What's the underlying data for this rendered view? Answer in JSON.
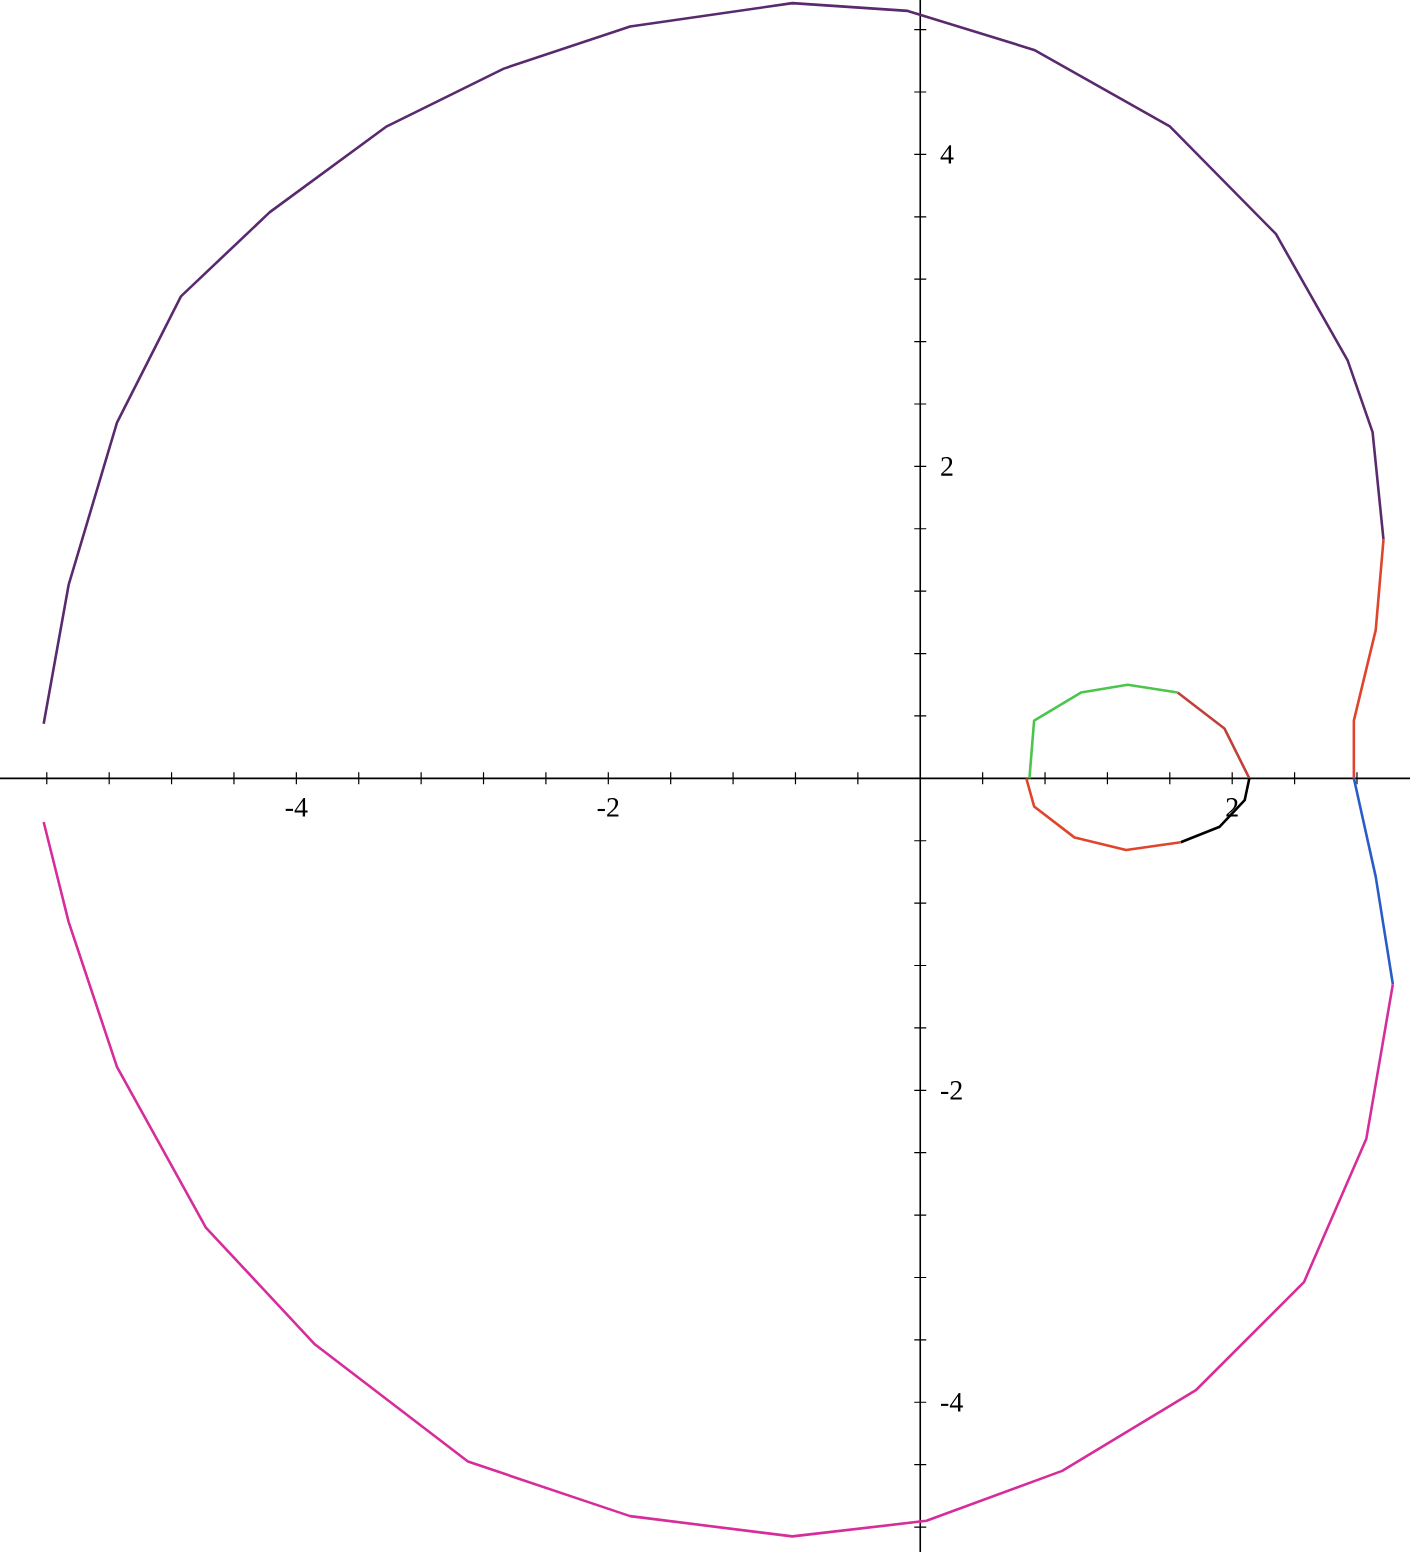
{
  "chart_data": {
    "type": "line",
    "xlim": [
      -5.9,
      3.14
    ],
    "ylim": [
      -4.96,
      4.99
    ],
    "marker": "none",
    "line_style": "solid",
    "grid": false,
    "legend": false,
    "xticks": [
      {
        "value": -5.6,
        "label": null
      },
      {
        "value": -5.2,
        "label": null
      },
      {
        "value": -4.8,
        "label": null
      },
      {
        "value": -4.4,
        "label": null
      },
      -4,
      {
        "value": -3.6,
        "label": null
      },
      {
        "value": -3.2,
        "label": null
      },
      {
        "value": -2.8,
        "label": null
      },
      {
        "value": -2.4,
        "label": null
      },
      -2,
      {
        "value": -1.6,
        "label": null
      },
      {
        "value": -1.2,
        "label": null
      },
      {
        "value": -0.8,
        "label": null
      },
      {
        "value": -0.4,
        "label": null
      },
      {
        "value": 0.4,
        "label": null
      },
      {
        "value": 0.8,
        "label": null
      },
      {
        "value": 1.2,
        "label": null
      },
      {
        "value": 1.6,
        "label": null
      },
      2,
      {
        "value": 2.4,
        "label": null
      },
      {
        "value": 2.8,
        "label": null
      }
    ],
    "yticks": [
      {
        "value": -4.8,
        "label": null
      },
      {
        "value": -4.4,
        "label": null
      },
      -4,
      {
        "value": -3.6,
        "label": null
      },
      {
        "value": -3.2,
        "label": null
      },
      {
        "value": -2.8,
        "label": null
      },
      {
        "value": -2.4,
        "label": null
      },
      -2,
      {
        "value": -1.6,
        "label": null
      },
      {
        "value": -1.2,
        "label": null
      },
      {
        "value": -0.8,
        "label": null
      },
      {
        "value": -0.4,
        "label": null
      },
      {
        "value": 0.4,
        "label": null
      },
      {
        "value": 0.8,
        "label": null
      },
      {
        "value": 1.2,
        "label": null
      },
      {
        "value": 1.6,
        "label": null
      },
      2,
      {
        "value": 2.4,
        "label": null
      },
      {
        "value": 2.8,
        "label": null
      },
      {
        "value": 3.2,
        "label": null
      },
      {
        "value": 3.6,
        "label": null
      },
      4,
      {
        "value": 4.4,
        "label": null
      },
      {
        "value": 4.8,
        "label": null
      }
    ],
    "series": [
      {
        "color": "#5a2a6e",
        "x": [
          -5.62,
          -5.46,
          -5.15,
          -4.74,
          -4.17,
          -3.42,
          -2.67,
          -1.86,
          -0.82,
          -0.08,
          0.73,
          1.6,
          2.28,
          2.74,
          2.9,
          2.97
        ],
        "values": [
          0.35,
          1.24,
          2.28,
          3.09,
          3.63,
          4.18,
          4.55,
          4.82,
          4.97,
          4.92,
          4.67,
          4.18,
          3.49,
          2.68,
          2.22,
          1.53
        ]
      },
      {
        "color": "#e0452c",
        "x": [
          2.97,
          2.92,
          2.78,
          2.78
        ],
        "values": [
          1.53,
          0.95,
          0.37,
          0
        ]
      },
      {
        "color": "#2a5cc8",
        "x": [
          2.78,
          2.92,
          3.03
        ],
        "values": [
          0,
          -0.63,
          -1.32
        ]
      },
      {
        "color": "#d62d9a",
        "x": [
          3.03,
          2.86,
          2.46,
          1.77,
          0.91,
          0.04,
          -0.82,
          -1.86,
          -2.9,
          -3.88,
          -4.58,
          -5.15,
          -5.46,
          -5.62
        ],
        "values": [
          -1.32,
          -2.31,
          -3.23,
          -3.92,
          -4.44,
          -4.76,
          -4.86,
          -4.73,
          -4.38,
          -3.63,
          -2.88,
          -1.85,
          -0.92,
          -0.28
        ]
      },
      {
        "color": "#4cc54c",
        "x": [
          0.7,
          0.73,
          1.03,
          1.33,
          1.65
        ],
        "values": [
          0,
          0.37,
          0.55,
          0.6,
          0.55
        ]
      },
      {
        "color": "#c0403a",
        "x": [
          1.65,
          1.95,
          2.11
        ],
        "values": [
          0.55,
          0.32,
          0
        ]
      },
      {
        "color": "#000000",
        "x": [
          2.11,
          2.08,
          1.92,
          1.67
        ],
        "values": [
          0,
          -0.14,
          -0.31,
          -0.41
        ]
      },
      {
        "color": "#e0452c",
        "x": [
          1.67,
          1.32,
          0.99,
          0.73,
          0.68
        ],
        "values": [
          -0.41,
          -0.46,
          -0.38,
          -0.18,
          0
        ]
      }
    ]
  }
}
